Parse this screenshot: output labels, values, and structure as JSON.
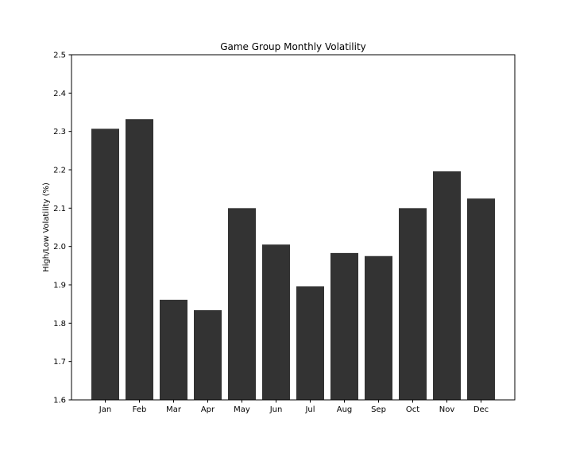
{
  "chart_data": {
    "type": "bar",
    "title": "Game Group Monthly Volatility",
    "xlabel": "",
    "ylabel": "High/Low Volatility (%)",
    "categories": [
      "Jan",
      "Feb",
      "Mar",
      "Apr",
      "May",
      "Jun",
      "Jul",
      "Aug",
      "Sep",
      "Oct",
      "Nov",
      "Dec"
    ],
    "values": [
      2.307,
      2.332,
      1.861,
      1.834,
      2.1,
      2.005,
      1.896,
      1.983,
      1.975,
      2.1,
      2.196,
      2.125
    ],
    "ylim": [
      1.6,
      2.5
    ],
    "yticks": [
      "1.6",
      "1.7",
      "1.8",
      "1.9",
      "2.0",
      "2.1",
      "2.2",
      "2.3",
      "2.4",
      "2.5"
    ],
    "grid": false,
    "legend": "none",
    "bar_color": "#333333"
  }
}
